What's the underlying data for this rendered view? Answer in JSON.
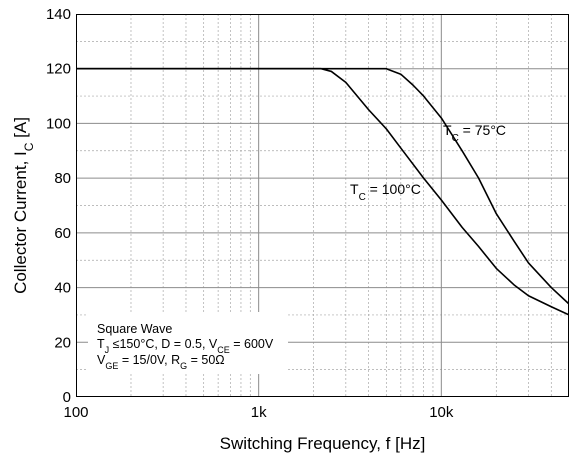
{
  "chart_data": {
    "type": "line",
    "x_scale": "log",
    "xlim": [
      100,
      50000
    ],
    "ylim": [
      0,
      140
    ],
    "grid": true,
    "xlabel": "Switching Frequency, f [Hz]",
    "ylabel": {
      "main": "Collector Current, I",
      "sub": "C",
      "unit": " [A]"
    },
    "x_ticks": [
      {
        "value": 100,
        "label": "100"
      },
      {
        "value": 1000,
        "label": "1k"
      },
      {
        "value": 10000,
        "label": "10k"
      }
    ],
    "y_ticks": [
      0,
      20,
      40,
      60,
      80,
      100,
      120,
      140
    ],
    "series": [
      {
        "name": "TC = 75°C",
        "label": {
          "prefix": "T",
          "sub": "C",
          "suffix": " = 75°C"
        },
        "points": [
          [
            100,
            120
          ],
          [
            1000,
            120
          ],
          [
            3000,
            120
          ],
          [
            5000,
            120
          ],
          [
            6000,
            118
          ],
          [
            7000,
            114
          ],
          [
            8000,
            110
          ],
          [
            10000,
            102
          ],
          [
            13000,
            90
          ],
          [
            16000,
            80
          ],
          [
            20000,
            67
          ],
          [
            25000,
            57
          ],
          [
            30000,
            49
          ],
          [
            40000,
            40
          ],
          [
            50000,
            34
          ]
        ]
      },
      {
        "name": "TC = 100°C",
        "label": {
          "prefix": "T",
          "sub": "C",
          "suffix": " = 100°C"
        },
        "points": [
          [
            100,
            120
          ],
          [
            1000,
            120
          ],
          [
            2200,
            120
          ],
          [
            2500,
            119
          ],
          [
            3000,
            115
          ],
          [
            4000,
            105
          ],
          [
            5000,
            98
          ],
          [
            6000,
            91
          ],
          [
            8000,
            80
          ],
          [
            10000,
            72
          ],
          [
            13000,
            62
          ],
          [
            16000,
            55
          ],
          [
            20000,
            47
          ],
          [
            25000,
            41
          ],
          [
            30000,
            37
          ],
          [
            40000,
            33
          ],
          [
            50000,
            30
          ]
        ]
      }
    ],
    "annotation": {
      "line1": "Square Wave",
      "line2": [
        {
          "t": "T",
          "sub": false
        },
        {
          "t": "J",
          "sub": true
        },
        {
          "t": " ≤150°C, D = 0.5, V",
          "sub": false
        },
        {
          "t": "CE",
          "sub": true
        },
        {
          "t": " = 600V",
          "sub": false
        }
      ],
      "line3": [
        {
          "t": "V",
          "sub": false
        },
        {
          "t": "GE",
          "sub": true
        },
        {
          "t": " = 15/0V, R",
          "sub": false
        },
        {
          "t": "G",
          "sub": true
        },
        {
          "t": " = 50Ω",
          "sub": false
        }
      ]
    }
  }
}
